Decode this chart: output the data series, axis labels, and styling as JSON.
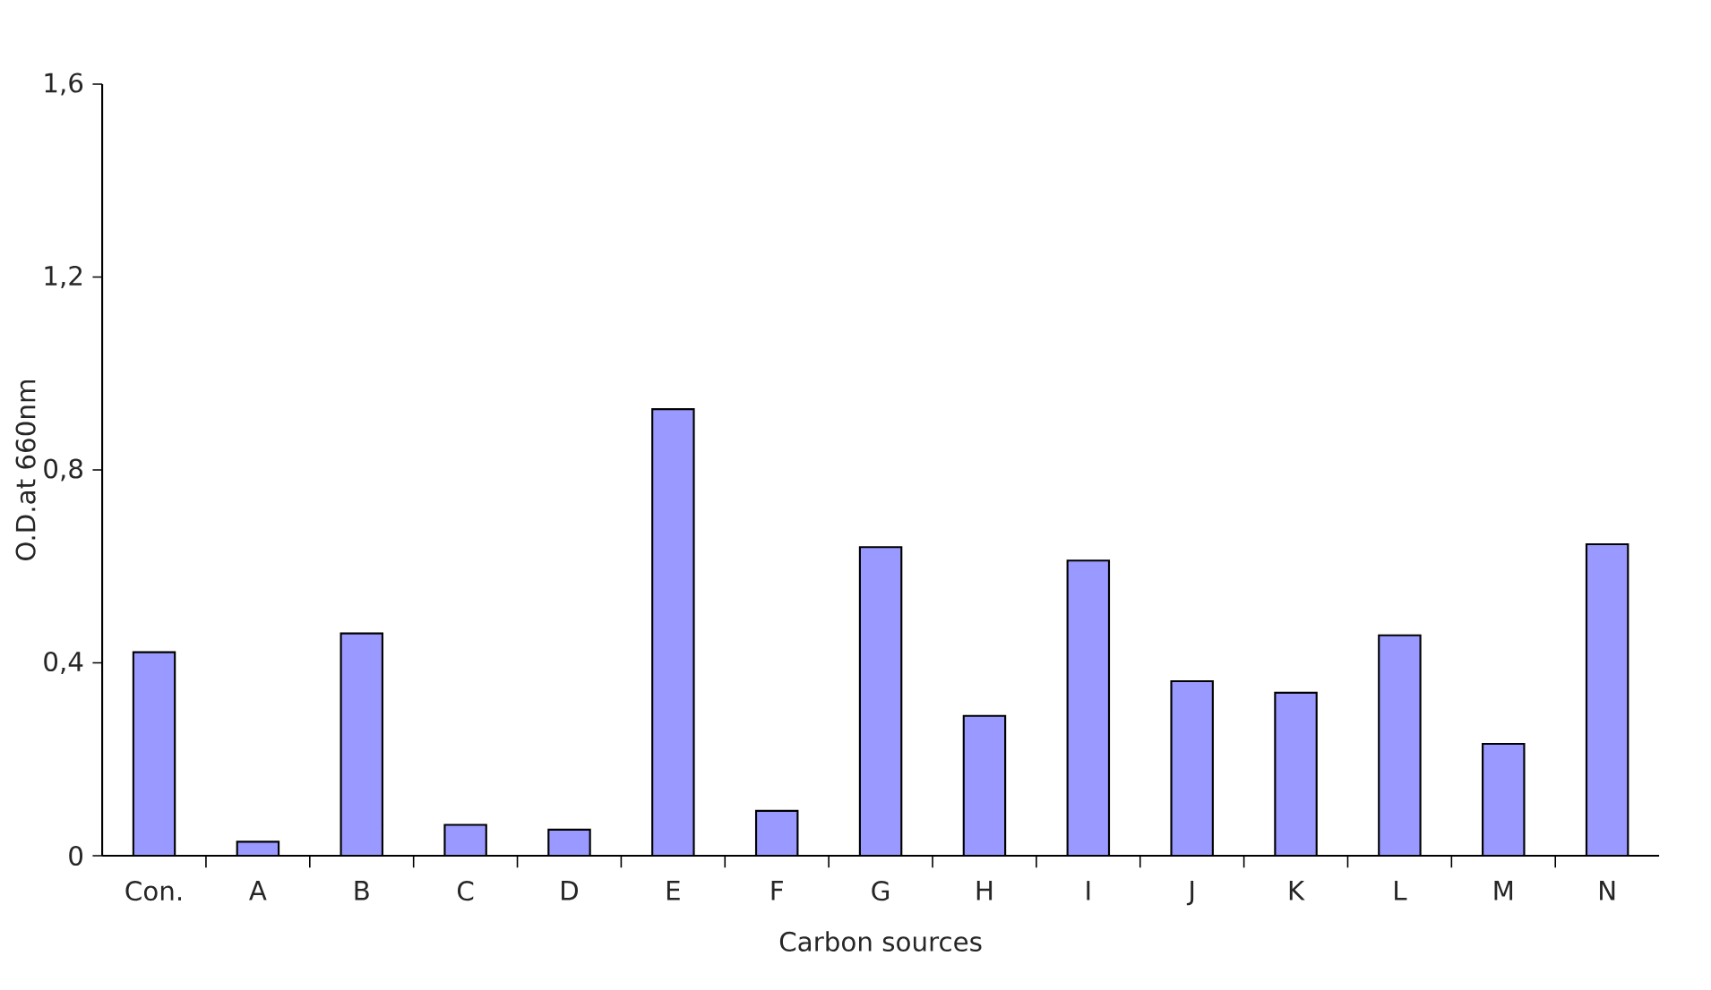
{
  "chart_data": {
    "type": "bar",
    "xlabel": "Carbon sources",
    "ylabel": "O.D.at 660nm",
    "categories": [
      "Con.",
      "A",
      "B",
      "C",
      "D",
      "E",
      "F",
      "G",
      "H",
      "I",
      "J",
      "K",
      "L",
      "M",
      "N"
    ],
    "values": [
      0.422,
      0.029,
      0.461,
      0.064,
      0.054,
      0.926,
      0.093,
      0.64,
      0.29,
      0.612,
      0.362,
      0.338,
      0.457,
      0.232,
      0.646
    ],
    "color": "#9999ff",
    "ylim": [
      0,
      1.6
    ],
    "yticks": [
      0,
      {
        "value": 0.4,
        "label": "0,4"
      },
      {
        "value": 0.8,
        "label": "0,8"
      },
      {
        "value": 1.2,
        "label": "1,2"
      },
      {
        "value": 1.6,
        "label": "1,6"
      }
    ],
    "grid": false
  }
}
